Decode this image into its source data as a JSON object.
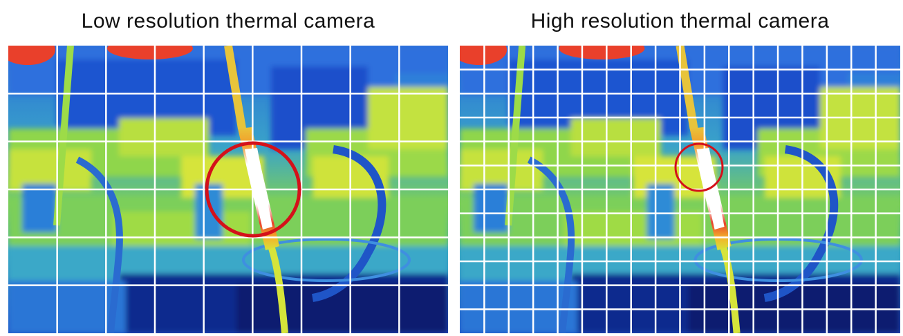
{
  "panels": {
    "left": {
      "title": "Low resolution thermal camera",
      "grid": {
        "columns": 9,
        "rows": 6
      }
    },
    "right": {
      "title": "High resolution thermal camera",
      "grid": {
        "columns": 18,
        "rows": 12
      }
    }
  },
  "colors": {
    "highlight_ring": "#d4111a",
    "grid_lines": "#ffffff",
    "palette": [
      "#0a1a6b",
      "#1d4fc6",
      "#2f86df",
      "#4fc0c9",
      "#8fd64c",
      "#d6e43a",
      "#f2b42a",
      "#e9402b",
      "#ffffff"
    ]
  }
}
